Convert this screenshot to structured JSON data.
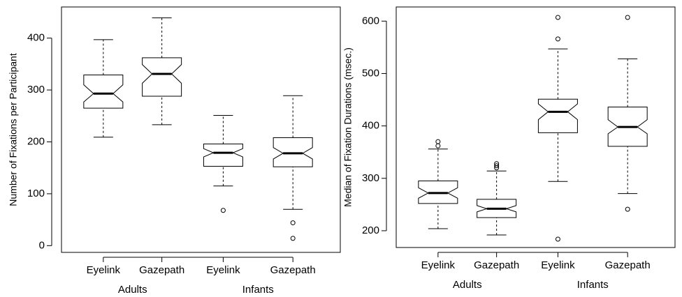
{
  "chart_data": [
    {
      "type": "boxplot",
      "ylabel": "Number of Fixations per Participant",
      "categories": [
        "Eyelink",
        "Gazepath",
        "Eyelink",
        "Gazepath"
      ],
      "groups": [
        "Adults",
        "Infants"
      ],
      "ylim": [
        -13,
        460
      ],
      "yticks": [
        0,
        100,
        200,
        300,
        400
      ],
      "color": "#000000",
      "boxes": [
        {
          "whisker_low": 209,
          "q1": 265,
          "median": 293,
          "q3": 329,
          "whisker_high": 397,
          "notch_low": 277,
          "notch_high": 310,
          "outliers": []
        },
        {
          "whisker_low": 233,
          "q1": 288,
          "median": 331,
          "q3": 362,
          "whisker_high": 439,
          "notch_low": 313,
          "notch_high": 349,
          "outliers": []
        },
        {
          "whisker_low": 115,
          "q1": 153,
          "median": 179,
          "q3": 196,
          "whisker_high": 251,
          "notch_low": 171,
          "notch_high": 187,
          "outliers": [
            68
          ]
        },
        {
          "whisker_low": 70,
          "q1": 152,
          "median": 178,
          "q3": 208,
          "whisker_high": 289,
          "notch_low": 167,
          "notch_high": 189,
          "outliers": [
            44,
            14
          ]
        }
      ]
    },
    {
      "type": "boxplot",
      "ylabel": "Median of Fixation Durations (msec.)",
      "categories": [
        "Eyelink",
        "Gazepath",
        "Eyelink",
        "Gazepath"
      ],
      "groups": [
        "Adults",
        "Infants"
      ],
      "ylim": [
        168,
        627
      ],
      "yticks": [
        200,
        300,
        400,
        500,
        600
      ],
      "color": "#000000",
      "boxes": [
        {
          "whisker_low": 204,
          "q1": 252,
          "median": 272,
          "q3": 295,
          "whisker_high": 356,
          "notch_low": 262,
          "notch_high": 282,
          "outliers": [
            362,
            370
          ]
        },
        {
          "whisker_low": 192,
          "q1": 225,
          "median": 242,
          "q3": 260,
          "whisker_high": 314,
          "notch_low": 236,
          "notch_high": 248,
          "outliers": [
            320,
            324,
            328
          ]
        },
        {
          "whisker_low": 294,
          "q1": 387,
          "median": 427,
          "q3": 451,
          "whisker_high": 547,
          "notch_low": 412,
          "notch_high": 442,
          "outliers": [
            566,
            607,
            184
          ]
        },
        {
          "whisker_low": 271,
          "q1": 361,
          "median": 398,
          "q3": 436,
          "whisker_high": 528,
          "notch_low": 385,
          "notch_high": 412,
          "outliers": [
            607,
            241
          ]
        }
      ]
    }
  ]
}
